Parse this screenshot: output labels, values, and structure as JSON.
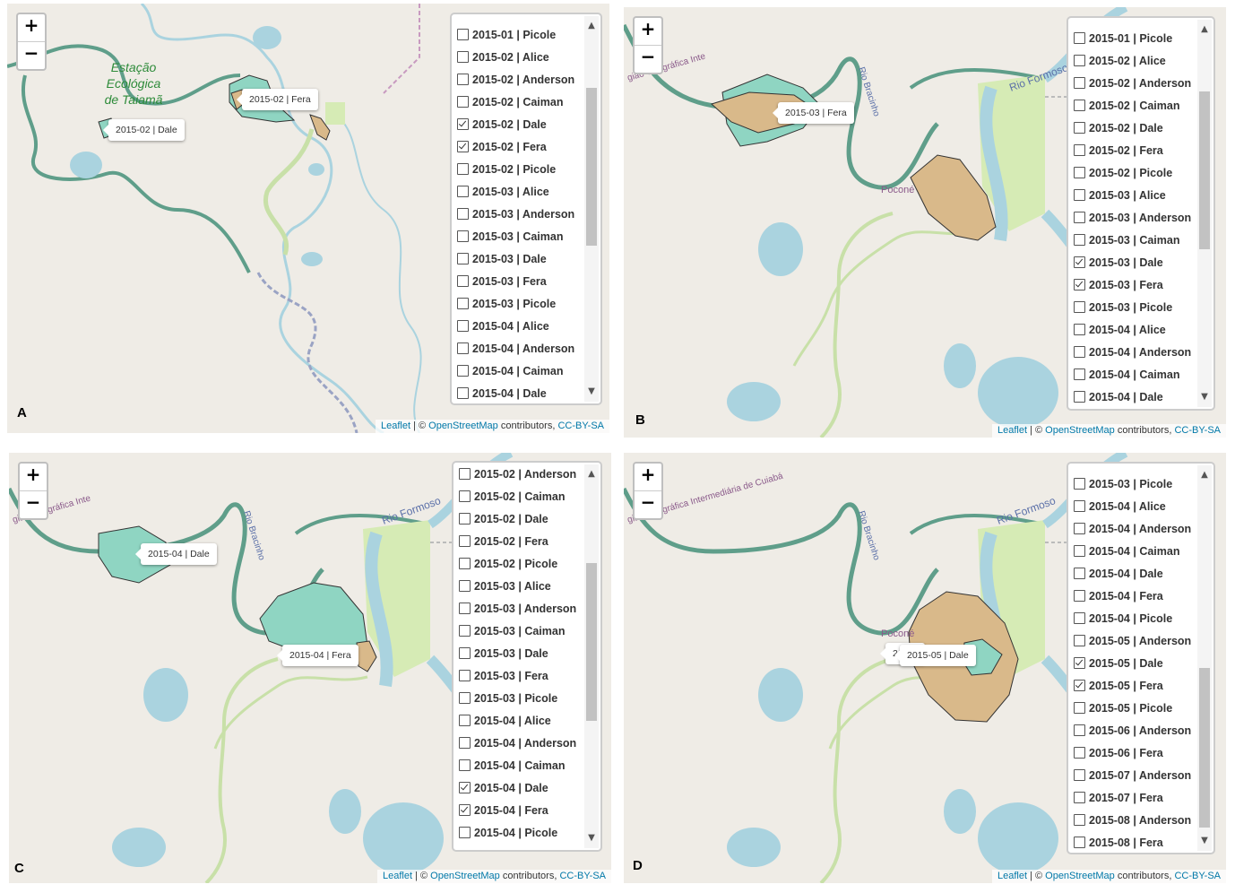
{
  "panels": [
    {
      "id": "A",
      "label": "A",
      "tooltips": [
        "2015-02 | Fera",
        "2015-02 | Dale"
      ],
      "place_label": [
        "Estação",
        "Ecológica",
        "de Taiamã"
      ],
      "road_labels": [],
      "layers": [
        {
          "label": "2015-01 | Picole",
          "checked": false
        },
        {
          "label": "2015-02 | Alice",
          "checked": false
        },
        {
          "label": "2015-02 | Anderson",
          "checked": false
        },
        {
          "label": "2015-02 | Caiman",
          "checked": false
        },
        {
          "label": "2015-02 | Dale",
          "checked": true
        },
        {
          "label": "2015-02 | Fera",
          "checked": true
        },
        {
          "label": "2015-02 | Picole",
          "checked": false
        },
        {
          "label": "2015-03 | Alice",
          "checked": false
        },
        {
          "label": "2015-03 | Anderson",
          "checked": false
        },
        {
          "label": "2015-03 | Caiman",
          "checked": false
        },
        {
          "label": "2015-03 | Dale",
          "checked": false
        },
        {
          "label": "2015-03 | Fera",
          "checked": false
        },
        {
          "label": "2015-03 | Picole",
          "checked": false
        },
        {
          "label": "2015-04 | Alice",
          "checked": false
        },
        {
          "label": "2015-04 | Anderson",
          "checked": false
        },
        {
          "label": "2015-04 | Caiman",
          "checked": false
        },
        {
          "label": "2015-04 | Dale",
          "checked": false
        }
      ]
    },
    {
      "id": "B",
      "label": "B",
      "tooltips": [
        "2015-03 | Fera"
      ],
      "place_label": [],
      "road_labels": [
        "Rio Formoso",
        "Rio Bracinho",
        "Poconé",
        "gião Geográfica Inte"
      ],
      "layers": [
        {
          "label": "2015-01 | Picole",
          "checked": false
        },
        {
          "label": "2015-02 | Alice",
          "checked": false
        },
        {
          "label": "2015-02 | Anderson",
          "checked": false
        },
        {
          "label": "2015-02 | Caiman",
          "checked": false
        },
        {
          "label": "2015-02 | Dale",
          "checked": false
        },
        {
          "label": "2015-02 | Fera",
          "checked": false
        },
        {
          "label": "2015-02 | Picole",
          "checked": false
        },
        {
          "label": "2015-03 | Alice",
          "checked": false
        },
        {
          "label": "2015-03 | Anderson",
          "checked": false
        },
        {
          "label": "2015-03 | Caiman",
          "checked": false
        },
        {
          "label": "2015-03 | Dale",
          "checked": true
        },
        {
          "label": "2015-03 | Fera",
          "checked": true
        },
        {
          "label": "2015-03 | Picole",
          "checked": false
        },
        {
          "label": "2015-04 | Alice",
          "checked": false
        },
        {
          "label": "2015-04 | Anderson",
          "checked": false
        },
        {
          "label": "2015-04 | Caiman",
          "checked": false
        },
        {
          "label": "2015-04 | Dale",
          "checked": false
        }
      ]
    },
    {
      "id": "C",
      "label": "C",
      "tooltips": [
        "2015-04 | Dale",
        "2015-04 | Fera"
      ],
      "place_label": [],
      "road_labels": [
        "Rio Formoso",
        "Rio Bracinho",
        "Poconé",
        "gião Geográfica Inte"
      ],
      "layers": [
        {
          "label": "2015-02 | Anderson",
          "checked": false
        },
        {
          "label": "2015-02 | Caiman",
          "checked": false
        },
        {
          "label": "2015-02 | Dale",
          "checked": false
        },
        {
          "label": "2015-02 | Fera",
          "checked": false
        },
        {
          "label": "2015-02 | Picole",
          "checked": false
        },
        {
          "label": "2015-03 | Alice",
          "checked": false
        },
        {
          "label": "2015-03 | Anderson",
          "checked": false
        },
        {
          "label": "2015-03 | Caiman",
          "checked": false
        },
        {
          "label": "2015-03 | Dale",
          "checked": false
        },
        {
          "label": "2015-03 | Fera",
          "checked": false
        },
        {
          "label": "2015-03 | Picole",
          "checked": false
        },
        {
          "label": "2015-04 | Alice",
          "checked": false
        },
        {
          "label": "2015-04 | Anderson",
          "checked": false
        },
        {
          "label": "2015-04 | Caiman",
          "checked": false
        },
        {
          "label": "2015-04 | Dale",
          "checked": true
        },
        {
          "label": "2015-04 | Fera",
          "checked": true
        },
        {
          "label": "2015-04 | Picole",
          "checked": false
        }
      ]
    },
    {
      "id": "D",
      "label": "D",
      "tooltips": [
        "2015-05 | Dale",
        "20"
      ],
      "place_label": [],
      "road_labels": [
        "Rio Formoso",
        "Rio Bracinho",
        "Poconé",
        "gião Geográfica Intermediária de Cuiabá"
      ],
      "layers": [
        {
          "label": "2015-03 | Picole",
          "checked": false
        },
        {
          "label": "2015-04 | Alice",
          "checked": false
        },
        {
          "label": "2015-04 | Anderson",
          "checked": false
        },
        {
          "label": "2015-04 | Caiman",
          "checked": false
        },
        {
          "label": "2015-04 | Dale",
          "checked": false
        },
        {
          "label": "2015-04 | Fera",
          "checked": false
        },
        {
          "label": "2015-04 | Picole",
          "checked": false
        },
        {
          "label": "2015-05 | Anderson",
          "checked": false
        },
        {
          "label": "2015-05 | Dale",
          "checked": true
        },
        {
          "label": "2015-05 | Fera",
          "checked": true
        },
        {
          "label": "2015-05 | Picole",
          "checked": false
        },
        {
          "label": "2015-06 | Anderson",
          "checked": false
        },
        {
          "label": "2015-06 | Fera",
          "checked": false
        },
        {
          "label": "2015-07 | Anderson",
          "checked": false
        },
        {
          "label": "2015-07 | Fera",
          "checked": false
        },
        {
          "label": "2015-08 | Anderson",
          "checked": false
        },
        {
          "label": "2015-08 | Fera",
          "checked": false
        }
      ]
    }
  ],
  "zoom": {
    "in_label": "+",
    "out_label": "−"
  },
  "attribution": {
    "leaflet": "Leaflet",
    "sep": " | © ",
    "osm": "OpenStreetMap",
    "contrib": " contributors, ",
    "license": "CC-BY-SA"
  },
  "colors": {
    "land": "#efece6",
    "water": "#aad3df",
    "river_border": "#5f9e8a",
    "teal_polygon": "#8fd5c2",
    "tan_polygon": "#d9b98a",
    "wetland": "#d6ebb5",
    "road": "#c8e0a8"
  }
}
